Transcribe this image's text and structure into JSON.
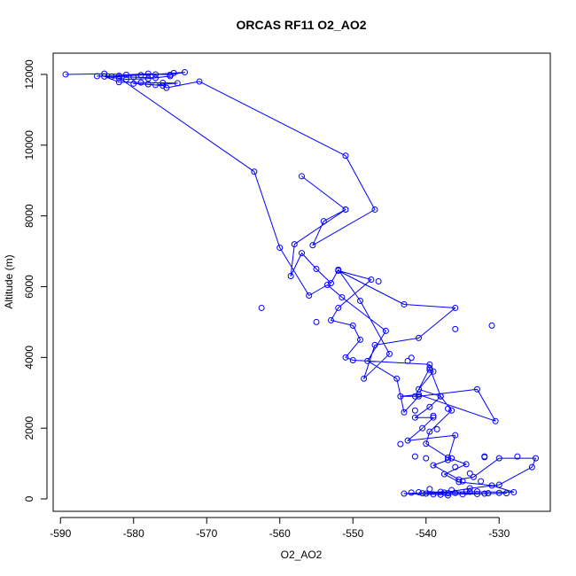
{
  "chart_data": {
    "type": "line",
    "title": "ORCAS RF11 O2_AO2",
    "xlabel": "O2_AO2",
    "ylabel": "Altitude (m)",
    "xlim": [
      -591,
      -523
    ],
    "ylim": [
      -350,
      12600
    ],
    "xticks": [
      -590,
      -580,
      -570,
      -560,
      -550,
      -540,
      -530
    ],
    "yticks": [
      0,
      2000,
      4000,
      6000,
      8000,
      10000,
      12000
    ],
    "x_tick_labels": [
      "-590",
      "-580",
      "-570",
      "-560",
      "-550",
      "-540",
      "-530"
    ],
    "y_tick_labels": [
      "0",
      "2000",
      "4000",
      "6000",
      "8000",
      "10000",
      "12000"
    ],
    "grid": false,
    "series": [
      {
        "color": "#0000FF",
        "marker": "open-circle",
        "points": [
          [
            -589.3,
            12000
          ],
          [
            -584.0,
            12020
          ],
          [
            -581.0,
            11990
          ],
          [
            -578.0,
            12020
          ],
          [
            -575.0,
            11990
          ],
          [
            -573.0,
            12060
          ],
          [
            -574.5,
            12040
          ],
          [
            -577.0,
            12000
          ],
          [
            -579.0,
            11980
          ],
          [
            -582.0,
            11960
          ],
          [
            -585.0,
            11950
          ],
          [
            -583.0,
            11940
          ],
          [
            -580.0,
            11920
          ],
          [
            -577.0,
            11900
          ],
          [
            -575.0,
            11950
          ],
          [
            -578.0,
            11880
          ],
          [
            -581.0,
            11860
          ],
          [
            -584.0,
            11940
          ],
          [
            -582.0,
            11780
          ],
          [
            -579.0,
            11770
          ],
          [
            -576.0,
            11760
          ],
          [
            -574.0,
            11750
          ],
          [
            -577.0,
            11700
          ],
          [
            -580.0,
            11740
          ],
          [
            -578.0,
            11720
          ],
          [
            -576.0,
            11680
          ],
          [
            -575.5,
            11620
          ],
          [
            -571.0,
            11800
          ],
          [
            -551.0,
            9700
          ],
          [
            -547.0,
            8180
          ],
          [
            -555.5,
            7170
          ],
          [
            -554.0,
            7850
          ],
          [
            -551.0,
            8180
          ],
          [
            -557.0,
            9120
          ],
          [
            -551.0,
            8180
          ],
          [
            -558.0,
            7200
          ],
          [
            -558.5,
            6300
          ],
          [
            -557.0,
            6950
          ],
          [
            -555.0,
            6500
          ],
          [
            -553.0,
            6100
          ],
          [
            -552.0,
            6480
          ],
          [
            -549.0,
            5600
          ],
          [
            -545.0,
            4100
          ],
          [
            -548.5,
            3400
          ],
          [
            -547.0,
            4350
          ],
          [
            -541.0,
            4550
          ],
          [
            -536.0,
            5400
          ],
          [
            -543.0,
            5500
          ],
          [
            -552.0,
            6450
          ],
          [
            -547.5,
            6200
          ],
          [
            -552.0,
            5400
          ],
          [
            -553.0,
            5050
          ],
          [
            -550.0,
            4900
          ],
          [
            -549.0,
            4500
          ],
          [
            -551.0,
            4000
          ],
          [
            -550.0,
            3920
          ],
          [
            -539.5,
            3800
          ],
          [
            -539.0,
            3600
          ],
          [
            -541.0,
            3100
          ],
          [
            -538.0,
            2900
          ],
          [
            -539.5,
            2600
          ],
          [
            -541.5,
            2300
          ],
          [
            -539.0,
            2300
          ],
          [
            -540.5,
            2000
          ],
          [
            -542.5,
            1650
          ],
          [
            -536.0,
            1800
          ],
          [
            -537.0,
            1100
          ],
          [
            -539.0,
            950
          ],
          [
            -535.5,
            550
          ],
          [
            -533.5,
            620
          ],
          [
            -530.0,
            1150
          ],
          [
            -525.0,
            1150
          ],
          [
            -525.5,
            900
          ],
          [
            -530.0,
            400
          ],
          [
            -534.0,
            300
          ],
          [
            -537.5,
            180
          ],
          [
            -540.0,
            150
          ],
          [
            -536.0,
            170
          ],
          [
            -532.0,
            150
          ],
          [
            -529.0,
            160
          ],
          [
            -533.0,
            140
          ],
          [
            -538.0,
            120
          ],
          [
            -543.0,
            150
          ],
          [
            -538.0,
            200
          ],
          [
            -534.0,
            200
          ],
          [
            -528.0,
            190
          ],
          [
            -531.0,
            380
          ],
          [
            -535.5,
            480
          ],
          [
            -537.5,
            700
          ],
          [
            -534.5,
            980
          ],
          [
            -537.0,
            1170
          ],
          [
            -540.0,
            1560
          ],
          [
            -539.5,
            1900
          ],
          [
            -536.5,
            2500
          ],
          [
            -538.0,
            2900
          ],
          [
            -539.5,
            3700
          ],
          [
            -541.5,
            2900
          ],
          [
            -543.5,
            2900
          ],
          [
            -541.0,
            2950
          ],
          [
            -530.5,
            2200
          ],
          [
            -533.0,
            3100
          ],
          [
            -541.0,
            2900
          ],
          [
            -543.0,
            2450
          ],
          [
            -544.0,
            3400
          ],
          [
            -548.0,
            3900
          ],
          [
            -545.5,
            4750
          ],
          [
            -551.5,
            5700
          ],
          [
            -553.5,
            6050
          ],
          [
            -556.0,
            5750
          ],
          [
            -560.0,
            7100
          ],
          [
            -563.5,
            9250
          ],
          [
            -582.0,
            11900
          ]
        ],
        "isolated_points": [
          [
            -542.5,
            3900
          ],
          [
            -536.0,
            4800
          ],
          [
            -531.0,
            4900
          ],
          [
            -546.5,
            6150
          ],
          [
            -562.5,
            5400
          ],
          [
            -555.0,
            5000
          ],
          [
            -539.5,
            3650
          ],
          [
            -542.0,
            3990
          ],
          [
            -541.5,
            1200
          ],
          [
            -543.5,
            1550
          ],
          [
            -537.0,
            2550
          ],
          [
            -536.5,
            1150
          ],
          [
            -535.0,
            500
          ],
          [
            -532.0,
            1200
          ],
          [
            -527.5,
            1200
          ],
          [
            -532.5,
            500
          ],
          [
            -534.0,
            720
          ],
          [
            -536.0,
            900
          ],
          [
            -532.0,
            1180
          ],
          [
            -539.0,
            2350
          ],
          [
            -541.5,
            2500
          ],
          [
            -538.5,
            1970
          ],
          [
            -540.0,
            1150
          ],
          [
            -534.5,
            200
          ],
          [
            -530.0,
            170
          ],
          [
            -536.5,
            250
          ],
          [
            -539.5,
            280
          ],
          [
            -541.0,
            190
          ],
          [
            -537.0,
            160
          ],
          [
            -535.0,
            130
          ],
          [
            -533.0,
            210
          ],
          [
            -531.5,
            160
          ],
          [
            -539.0,
            130
          ],
          [
            -542.0,
            180
          ],
          [
            -537.0,
            100
          ],
          [
            -540.5,
            160
          ]
        ]
      }
    ]
  }
}
